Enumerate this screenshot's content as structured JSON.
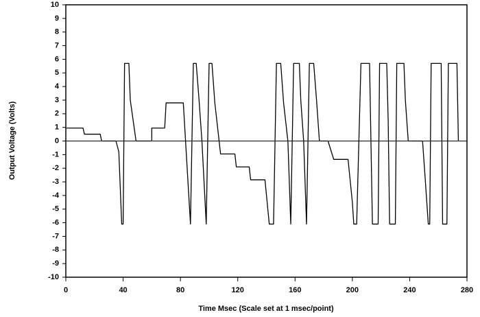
{
  "chart_data": {
    "type": "line",
    "xlabel": "Time Msec (Scale set at 1 msec/point)",
    "ylabel": "Output Voltage (Volts)",
    "x": [
      0,
      12,
      13,
      24,
      25,
      35,
      37,
      39,
      40,
      41,
      44,
      45,
      47,
      49,
      60,
      60,
      69,
      70,
      82,
      87,
      89,
      91,
      93,
      95,
      98,
      100,
      102,
      104,
      107,
      108,
      118,
      119,
      128,
      129,
      139,
      142,
      145,
      147,
      150,
      152,
      155,
      157,
      159,
      163,
      164,
      166,
      168,
      170,
      173,
      175,
      177,
      183,
      187,
      197,
      200,
      201,
      203,
      206,
      212,
      214,
      218,
      219,
      224,
      225,
      226,
      230,
      231,
      236,
      237,
      239,
      249,
      251,
      253,
      254,
      255,
      262,
      263,
      266,
      267,
      273,
      274
    ],
    "values": [
      0.95,
      0.95,
      0.5,
      0.5,
      0,
      0,
      -0.8,
      -6.1,
      -6.1,
      5.7,
      5.7,
      3,
      1.5,
      0,
      0,
      0.95,
      0.95,
      2.8,
      2.8,
      -6.1,
      5.7,
      5.7,
      3,
      0,
      -6.1,
      5.7,
      5.7,
      2.8,
      0,
      -0.95,
      -0.95,
      -1.9,
      -1.9,
      -2.85,
      -2.85,
      -6.1,
      -6.1,
      5.7,
      5.7,
      2.8,
      0,
      -6.1,
      5.7,
      5.7,
      3,
      0,
      -6.1,
      5.7,
      5.7,
      3,
      0,
      0,
      -1.35,
      -1.35,
      -4.5,
      -6.1,
      -6.1,
      5.7,
      5.7,
      -6.1,
      -6.1,
      5.7,
      5.7,
      1.5,
      -6.1,
      -6.1,
      5.7,
      5.7,
      3,
      0,
      0,
      -3,
      -6.1,
      -6.1,
      5.7,
      5.7,
      -6.1,
      -6.1,
      5.7,
      5.7,
      0
    ],
    "color": "#000000",
    "xlim": [
      0,
      280
    ],
    "xticks": [
      0,
      40,
      80,
      120,
      160,
      200,
      240,
      280
    ],
    "ylim": [
      -10,
      10
    ],
    "yticks": [
      -10,
      -9,
      -8,
      -7,
      -6,
      -5,
      -4,
      -3,
      -2,
      -1,
      0,
      1,
      2,
      3,
      4,
      5,
      6,
      7,
      8,
      9,
      10
    ],
    "zero_line": true
  }
}
